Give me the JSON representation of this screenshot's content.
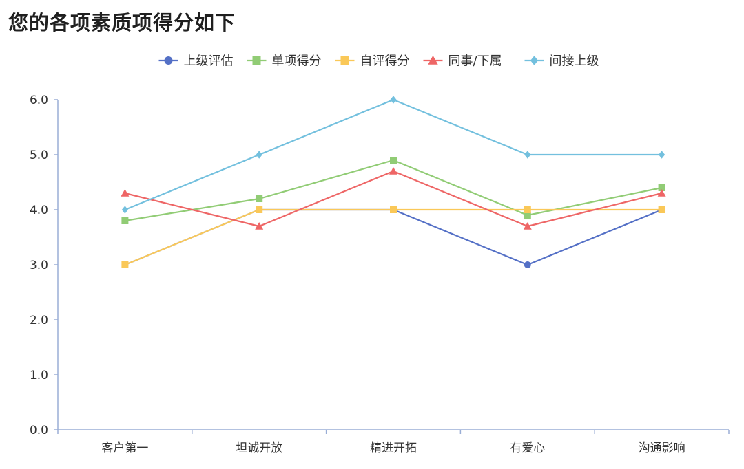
{
  "page": {
    "title": "您的各项素质项得分如下"
  },
  "chart_data": {
    "type": "line",
    "categories": [
      "客户第一",
      "坦诚开放",
      "精进开拓",
      "有爱心",
      "沟通影响"
    ],
    "ylim": [
      0,
      6
    ],
    "yticks": [
      "0.0",
      "1.0",
      "2.0",
      "3.0",
      "4.0",
      "5.0",
      "6.0"
    ],
    "legend_position": "top-center",
    "grid": false,
    "series": [
      {
        "name": "上级评估",
        "color": "#5470c6",
        "marker": "circle",
        "values": [
          3.0,
          4.0,
          4.0,
          3.0,
          4.0
        ]
      },
      {
        "name": "单项得分",
        "color": "#91cc75",
        "marker": "square",
        "values": [
          3.8,
          4.2,
          4.9,
          3.9,
          4.4
        ]
      },
      {
        "name": "自评得分",
        "color": "#fac858",
        "marker": "square",
        "values": [
          3.0,
          4.0,
          4.0,
          4.0,
          4.0
        ]
      },
      {
        "name": "同事/下属",
        "color": "#ee6666",
        "marker": "triangle",
        "values": [
          4.3,
          3.7,
          4.7,
          3.7,
          4.3
        ]
      },
      {
        "name": "间接上级",
        "color": "#73c0de",
        "marker": "diamond",
        "values": [
          4.0,
          5.0,
          6.0,
          5.0,
          5.0
        ]
      }
    ]
  }
}
